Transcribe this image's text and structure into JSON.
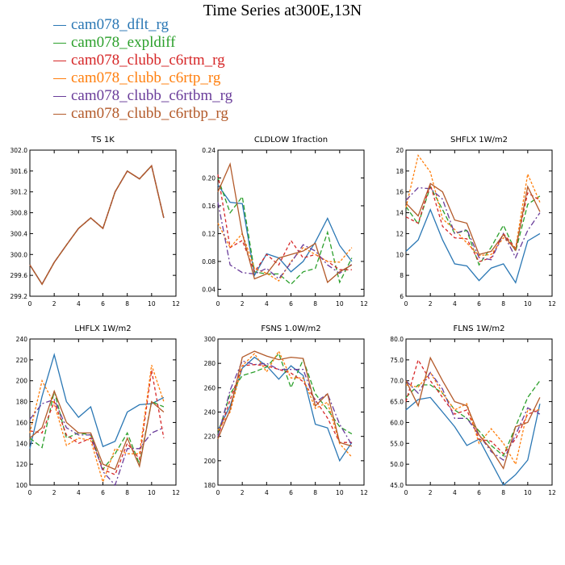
{
  "title": "Time Series at300E,13N",
  "legend": [
    {
      "label": "cam078_dflt_rg",
      "color": "#2a77b4"
    },
    {
      "label": "cam078_expldiff",
      "color": "#2ca02c"
    },
    {
      "label": "cam078_clubb_c6rtm_rg",
      "color": "#d62728"
    },
    {
      "label": "cam078_clubb_c6rtp_rg",
      "color": "#ff7f0e"
    },
    {
      "label": "cam078_clubb_c6rtbm_rg",
      "color": "#6a3d9a"
    },
    {
      "label": "cam078_clubb_c6rtbp_rg",
      "color": "#b35a2a"
    }
  ],
  "chart_data": [
    {
      "type": "line",
      "title": "TS   1K",
      "xlim": [
        0,
        12
      ],
      "ylim": [
        299.2,
        302.0
      ],
      "xticks": [
        0,
        2,
        4,
        6,
        8,
        10,
        12
      ],
      "yticks": [
        "299.2",
        "299.6",
        "300.0",
        "300.4",
        "300.8",
        "301.2",
        "301.6",
        "302.0"
      ],
      "x": [
        0,
        1,
        2,
        3,
        4,
        5,
        6,
        7,
        8,
        9,
        10,
        11
      ],
      "series": [
        {
          "values": [
            299.8,
            299.43,
            299.85,
            300.18,
            300.5,
            300.7,
            300.5,
            301.2,
            301.6,
            301.45,
            301.7,
            300.7
          ]
        },
        {
          "values": [
            299.8,
            299.43,
            299.85,
            300.18,
            300.5,
            300.7,
            300.5,
            301.2,
            301.6,
            301.45,
            301.7,
            300.7
          ]
        },
        {
          "values": [
            299.8,
            299.43,
            299.85,
            300.18,
            300.5,
            300.7,
            300.5,
            301.2,
            301.6,
            301.45,
            301.7,
            300.7
          ]
        },
        {
          "values": [
            299.8,
            299.43,
            299.85,
            300.18,
            300.5,
            300.7,
            300.5,
            301.2,
            301.6,
            301.45,
            301.7,
            300.7
          ]
        },
        {
          "values": [
            299.8,
            299.43,
            299.85,
            300.18,
            300.5,
            300.7,
            300.5,
            301.2,
            301.6,
            301.45,
            301.7,
            300.7
          ]
        },
        {
          "values": [
            299.8,
            299.43,
            299.85,
            300.18,
            300.5,
            300.7,
            300.5,
            301.2,
            301.6,
            301.45,
            301.7,
            300.7
          ]
        }
      ]
    },
    {
      "type": "line",
      "title": "CLDLOW   1fraction",
      "xlim": [
        0,
        12
      ],
      "ylim": [
        0.03,
        0.24
      ],
      "xticks": [
        0,
        2,
        4,
        6,
        8,
        10,
        12
      ],
      "yticks": [
        "0.04",
        "0.08",
        "0.12",
        "0.16",
        "0.20",
        "0.24"
      ],
      "x": [
        0,
        1,
        2,
        3,
        4,
        5,
        6,
        7,
        8,
        9,
        10,
        11
      ],
      "series": [
        {
          "values": [
            0.19,
            0.165,
            0.163,
            0.06,
            0.091,
            0.085,
            0.065,
            0.08,
            0.108,
            0.142,
            0.103,
            0.08
          ]
        },
        {
          "values": [
            0.2,
            0.15,
            0.173,
            0.065,
            0.062,
            0.062,
            0.047,
            0.065,
            0.07,
            0.122,
            0.05,
            0.085
          ]
        },
        {
          "values": [
            0.205,
            0.1,
            0.11,
            0.065,
            0.09,
            0.075,
            0.11,
            0.085,
            0.09,
            0.08,
            0.068,
            0.068
          ]
        },
        {
          "values": [
            0.135,
            0.1,
            0.12,
            0.07,
            0.063,
            0.052,
            0.08,
            0.1,
            0.09,
            0.08,
            0.079,
            0.1
          ]
        },
        {
          "values": [
            0.165,
            0.075,
            0.064,
            0.062,
            0.07,
            0.055,
            0.078,
            0.104,
            0.095,
            0.075,
            0.063,
            0.076
          ]
        },
        {
          "values": [
            0.18,
            0.22,
            0.12,
            0.055,
            0.062,
            0.085,
            0.09,
            0.095,
            0.106,
            0.05,
            0.065,
            0.075
          ]
        }
      ]
    },
    {
      "type": "line",
      "title": "SHFLX   1W/m2",
      "xlim": [
        0,
        12
      ],
      "ylim": [
        6,
        20
      ],
      "xticks": [
        0,
        2,
        4,
        6,
        8,
        10,
        12
      ],
      "yticks": [
        "6",
        "8",
        "10",
        "12",
        "14",
        "16",
        "18",
        "20"
      ],
      "x": [
        0,
        1,
        2,
        3,
        4,
        5,
        6,
        7,
        8,
        9,
        10,
        11
      ],
      "series": [
        {
          "values": [
            10.3,
            11.4,
            14.3,
            11.4,
            9.1,
            8.9,
            7.5,
            8.7,
            9.1,
            7.3,
            11.3,
            12.0
          ]
        },
        {
          "values": [
            14.6,
            12.9,
            16.5,
            14.3,
            12.0,
            12.3,
            9.0,
            10.7,
            12.8,
            10.3,
            14.8,
            15.6
          ]
        },
        {
          "values": [
            13.6,
            13.0,
            16.7,
            12.7,
            11.6,
            11.5,
            9.3,
            9.7,
            12.0,
            10.6,
            15.9,
            15.2
          ]
        },
        {
          "values": [
            14.5,
            19.5,
            17.9,
            13.4,
            12.4,
            11.1,
            9.9,
            10.0,
            11.6,
            10.6,
            17.7,
            15.0
          ]
        },
        {
          "values": [
            15.2,
            16.4,
            16.3,
            15.3,
            12.0,
            12.4,
            9.7,
            9.5,
            12.0,
            9.7,
            12.3,
            14.0
          ]
        },
        {
          "values": [
            14.9,
            13.7,
            16.8,
            16.0,
            13.3,
            13.0,
            10.0,
            10.3,
            11.9,
            10.4,
            16.5,
            14.1
          ]
        }
      ]
    },
    {
      "type": "line",
      "title": "LHFLX   1W/m2",
      "xlim": [
        0,
        12
      ],
      "ylim": [
        100,
        240
      ],
      "xticks": [
        0,
        2,
        4,
        6,
        8,
        10,
        12
      ],
      "yticks": [
        "100",
        "120",
        "140",
        "160",
        "180",
        "200",
        "220",
        "240"
      ],
      "x": [
        0,
        1,
        2,
        3,
        4,
        5,
        6,
        7,
        8,
        9,
        10,
        11
      ],
      "series": [
        {
          "values": [
            135,
            185,
            225,
            180,
            165,
            175,
            137,
            142,
            170,
            177,
            178,
            184
          ]
        },
        {
          "values": [
            145,
            136,
            190,
            145,
            150,
            148,
            115,
            130,
            150,
            120,
            180,
            175
          ]
        },
        {
          "values": [
            152,
            150,
            180,
            148,
            140,
            145,
            115,
            110,
            140,
            125,
            210,
            145
          ]
        },
        {
          "values": [
            150,
            200,
            178,
            138,
            145,
            143,
            103,
            135,
            130,
            130,
            215,
            180
          ]
        },
        {
          "values": [
            163,
            178,
            182,
            155,
            148,
            148,
            113,
            100,
            135,
            135,
            150,
            155
          ]
        },
        {
          "values": [
            145,
            155,
            190,
            160,
            150,
            150,
            120,
            115,
            145,
            118,
            180,
            170
          ]
        }
      ]
    },
    {
      "type": "line",
      "title": "FSNS   1.0W/m2",
      "xlim": [
        0,
        12
      ],
      "ylim": [
        180,
        300
      ],
      "xticks": [
        0,
        2,
        4,
        6,
        8,
        10,
        12
      ],
      "yticks": [
        "180",
        "200",
        "220",
        "240",
        "260",
        "280",
        "300"
      ],
      "x": [
        0,
        1,
        2,
        3,
        4,
        5,
        6,
        7,
        8,
        9,
        10,
        11
      ],
      "series": [
        {
          "values": [
            225,
            245,
            276,
            285,
            278,
            267,
            278,
            270,
            230,
            227,
            200,
            215
          ]
        },
        {
          "values": [
            222,
            255,
            270,
            273,
            277,
            288,
            260,
            283,
            255,
            242,
            228,
            222
          ]
        },
        {
          "values": [
            220,
            250,
            278,
            279,
            278,
            275,
            272,
            265,
            250,
            235,
            215,
            215
          ]
        },
        {
          "values": [
            225,
            240,
            278,
            288,
            273,
            290,
            268,
            268,
            243,
            248,
            214,
            203
          ]
        },
        {
          "values": [
            220,
            258,
            282,
            279,
            280,
            275,
            275,
            275,
            248,
            255,
            230,
            213
          ]
        },
        {
          "values": [
            218,
            242,
            285,
            290,
            286,
            283,
            285,
            284,
            245,
            255,
            215,
            212
          ]
        }
      ]
    },
    {
      "type": "line",
      "title": "FLNS   1W/m2",
      "xlim": [
        0,
        12
      ],
      "ylim": [
        45,
        80
      ],
      "xticks": [
        0,
        2,
        4,
        6,
        8,
        10,
        12
      ],
      "yticks": [
        "45.0",
        "50.0",
        "55.0",
        "60.0",
        "65.0",
        "70.0",
        "75.0",
        "80.0"
      ],
      "x": [
        0,
        1,
        2,
        3,
        4,
        5,
        6,
        7,
        8,
        9,
        10,
        11
      ],
      "series": [
        {
          "values": [
            63,
            65.5,
            66,
            62.5,
            59,
            54.5,
            56,
            50.5,
            45,
            47.5,
            51,
            64.5
          ]
        },
        {
          "values": [
            66,
            69,
            69,
            67,
            63,
            61,
            58,
            54.5,
            52,
            59,
            66,
            70
          ]
        },
        {
          "values": [
            65,
            75,
            70,
            66,
            62,
            63,
            56,
            55.5,
            52.5,
            56,
            62,
            63
          ]
        },
        {
          "values": [
            69,
            68.5,
            72,
            67,
            63,
            64.5,
            55,
            58.5,
            55,
            50,
            63,
            63
          ]
        },
        {
          "values": [
            70,
            67,
            72,
            68,
            61,
            61,
            57,
            53,
            51,
            57,
            63.5,
            62
          ]
        },
        {
          "values": [
            70,
            64,
            75.5,
            70,
            65,
            64,
            57,
            53.5,
            49,
            59,
            60,
            66
          ]
        }
      ]
    }
  ]
}
